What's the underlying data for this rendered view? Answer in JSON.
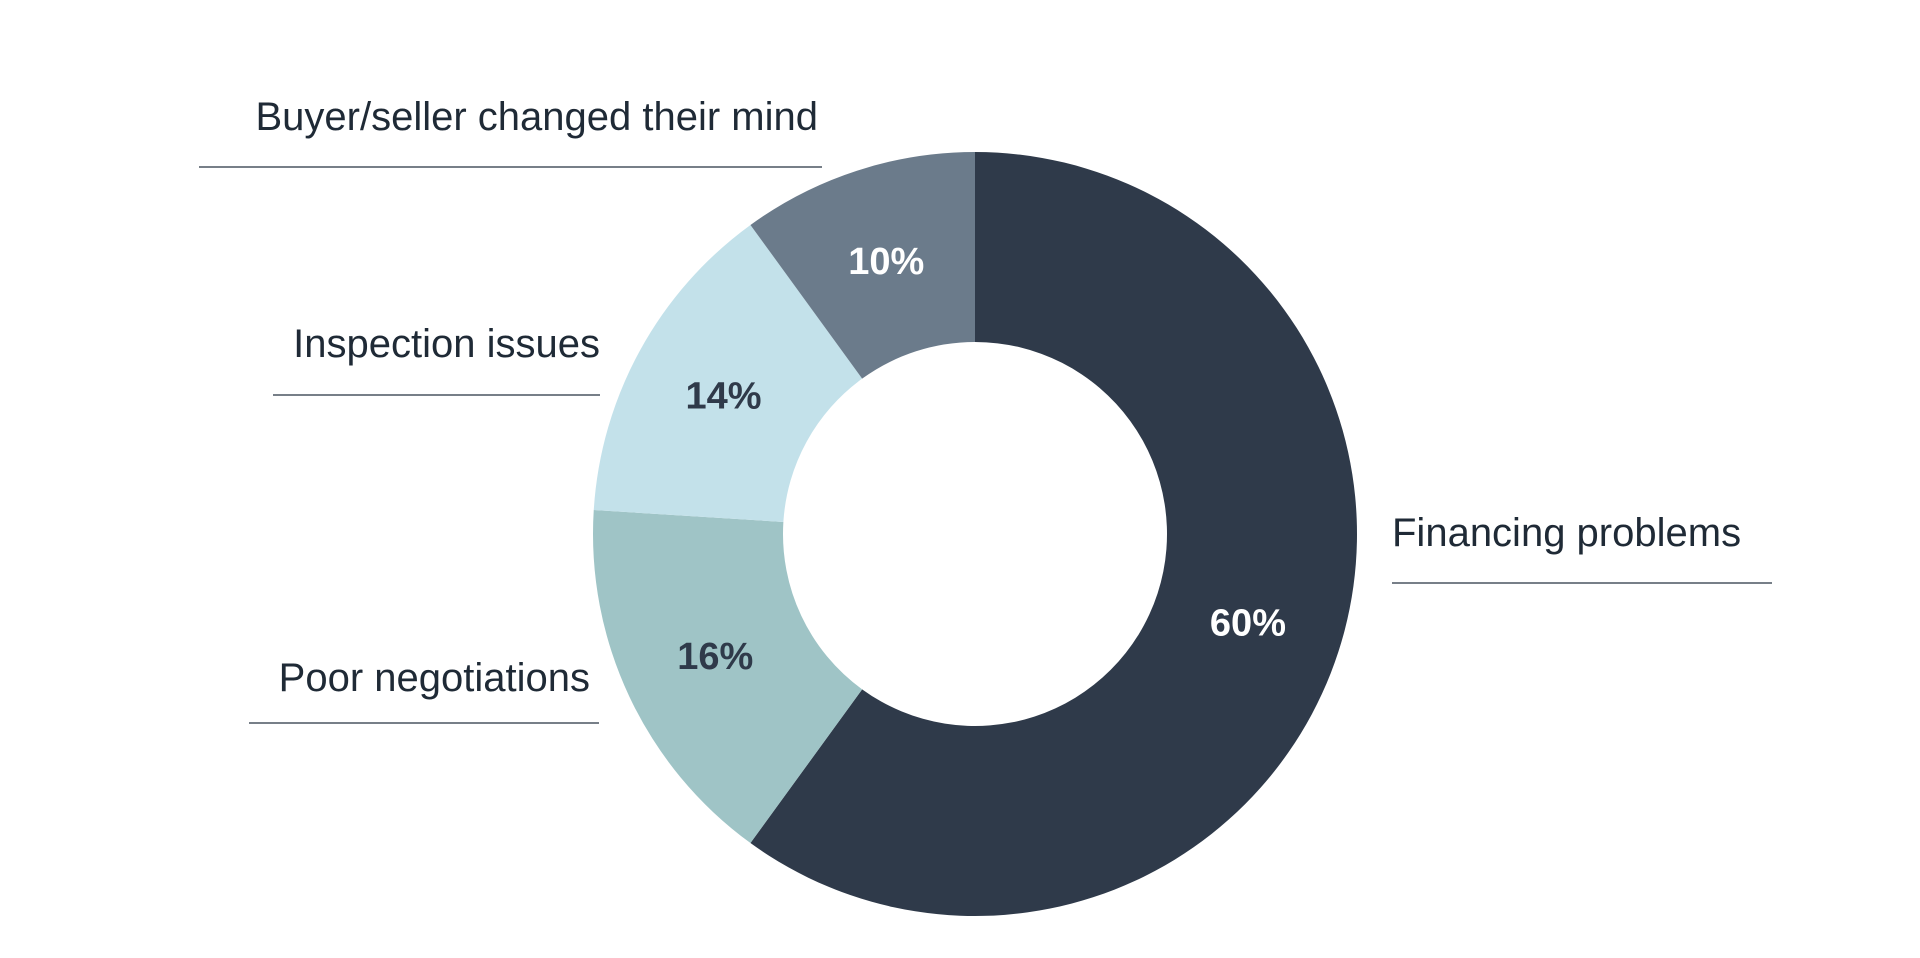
{
  "chart_data": {
    "type": "pie",
    "title": "",
    "categories": [
      "Financing problems",
      "Poor negotiations",
      "Inspection issues",
      "Buyer/seller changed their mind"
    ],
    "values": [
      60,
      16,
      14,
      10
    ],
    "value_labels": [
      "60%",
      "16%",
      "14%",
      "10%"
    ],
    "colors": [
      "#2f3a4a",
      "#9fc4c6",
      "#c3e1ea",
      "#6b7b8b"
    ],
    "label_colors": [
      "#ffffff",
      "#2f3a4a",
      "#2f3a4a",
      "#ffffff"
    ],
    "donut": true,
    "legend": "callout labels beside slices"
  }
}
